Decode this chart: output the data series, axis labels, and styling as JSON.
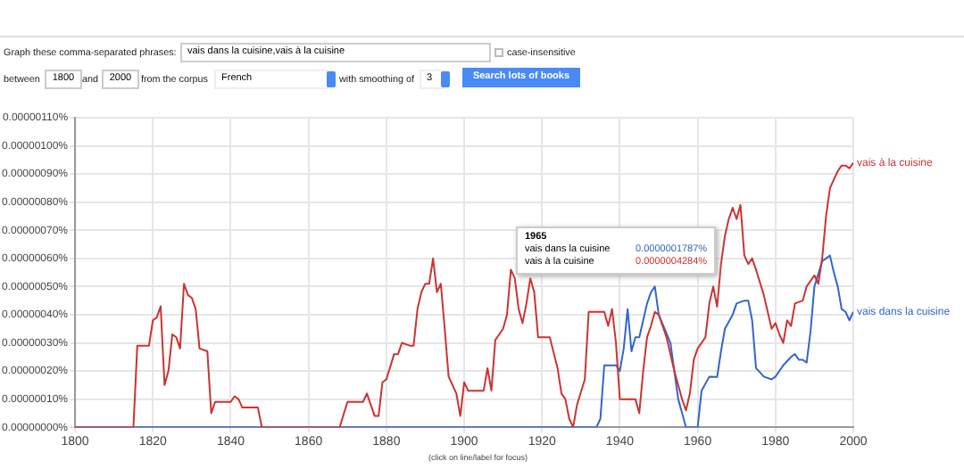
{
  "chart_data": {
    "type": "line",
    "xlim": [
      1800,
      2000
    ],
    "xticks": [
      1800,
      1820,
      1840,
      1860,
      1880,
      1900,
      1920,
      1940,
      1960,
      1980,
      2000
    ],
    "ylim": [
      0,
      1.1e-06
    ],
    "yticks": [
      {
        "value": 0,
        "label": "0.00000000%"
      },
      {
        "value": 1e-07,
        "label": "0.00000010%"
      },
      {
        "value": 2e-07,
        "label": "0.00000020%"
      },
      {
        "value": 3e-07,
        "label": "0.00000030%"
      },
      {
        "value": 4e-07,
        "label": "0.00000040%"
      },
      {
        "value": 5e-07,
        "label": "0.00000050%"
      },
      {
        "value": 6e-07,
        "label": "0.00000060%"
      },
      {
        "value": 7e-07,
        "label": "0.00000070%"
      },
      {
        "value": 8e-07,
        "label": "0.00000080%"
      },
      {
        "value": 9e-07,
        "label": "0.00000090%"
      },
      {
        "value": 1e-06,
        "label": "0.00000100%"
      },
      {
        "value": 1.1e-06,
        "label": "0.00000110%"
      }
    ],
    "grid": true,
    "legend": false,
    "marker": "none",
    "line_style": "solid",
    "series": [
      {
        "name": "vais à la cuisine",
        "color": "#cc3333",
        "x": [
          1800,
          1815,
          1816,
          1819,
          1820,
          1821,
          1822,
          1823,
          1824,
          1825,
          1826,
          1827,
          1828,
          1829,
          1830,
          1831,
          1832,
          1834,
          1835,
          1836,
          1840,
          1841,
          1842,
          1843,
          1847,
          1848,
          1868,
          1870,
          1874,
          1875,
          1877,
          1878,
          1879,
          1880,
          1882,
          1883,
          1884,
          1886,
          1887,
          1888,
          1889,
          1890,
          1891,
          1892,
          1893,
          1894,
          1895,
          1896,
          1898,
          1899,
          1900,
          1901,
          1905,
          1906,
          1907,
          1908,
          1909,
          1910,
          1911,
          1912,
          1913,
          1914,
          1915,
          1916,
          1917,
          1918,
          1919,
          1922,
          1924,
          1925,
          1926,
          1927,
          1928,
          1929,
          1931,
          1932,
          1936,
          1937,
          1938,
          1939,
          1940,
          1944,
          1945,
          1946,
          1947,
          1948,
          1949,
          1950,
          1952,
          1954,
          1956,
          1957,
          1958,
          1959,
          1960,
          1962,
          1963,
          1964,
          1965,
          1966,
          1967,
          1968,
          1969,
          1970,
          1971,
          1972,
          1973,
          1974,
          1975,
          1977,
          1979,
          1980,
          1981,
          1982,
          1983,
          1984,
          1985,
          1987,
          1988,
          1990,
          1991,
          1992,
          1993,
          1994,
          1995,
          1996,
          1997,
          1998,
          1999,
          2000
        ],
        "values": [
          0,
          0,
          2.9e-07,
          2.9e-07,
          3.8e-07,
          3.9e-07,
          4.3e-07,
          1.5e-07,
          2e-07,
          3.3e-07,
          3.2e-07,
          2.8e-07,
          5.1e-07,
          4.7e-07,
          4.6e-07,
          4.2e-07,
          2.8e-07,
          2.7e-07,
          5e-08,
          9e-08,
          9e-08,
          1.1e-07,
          1e-07,
          7e-08,
          7e-08,
          0,
          0,
          9e-08,
          9e-08,
          1.2e-07,
          4e-08,
          4e-08,
          1.6e-07,
          1.7e-07,
          2.6e-07,
          2.6e-07,
          3e-07,
          2.9e-07,
          2.9e-07,
          4.2e-07,
          4.8e-07,
          5.1e-07,
          5.1e-07,
          6e-07,
          4.8e-07,
          5.1e-07,
          3.5e-07,
          1.8e-07,
          1.2e-07,
          4e-08,
          1.6e-07,
          1.3e-07,
          1.3e-07,
          2.1e-07,
          1.3e-07,
          3.1e-07,
          3.3e-07,
          3.5e-07,
          4e-07,
          5.6e-07,
          5.3e-07,
          4.2e-07,
          3.7e-07,
          4.4e-07,
          5.3e-07,
          4.8e-07,
          3.2e-07,
          3.2e-07,
          2.1e-07,
          1.2e-07,
          1e-07,
          3e-08,
          0,
          8e-08,
          1.7e-07,
          4.1e-07,
          4.1e-07,
          3.6e-07,
          4.2e-07,
          3e-07,
          1e-07,
          1e-07,
          5e-08,
          2e-07,
          3.2e-07,
          3.6e-07,
          4.1e-07,
          4e-07,
          3.2e-07,
          2e-07,
          1e-07,
          6e-08,
          1.2e-07,
          2.4e-07,
          2.8e-07,
          3.2e-07,
          4.4e-07,
          5e-07,
          4.284e-07,
          5.8e-07,
          6.8e-07,
          7.4e-07,
          7.8e-07,
          7.4e-07,
          7.9e-07,
          6.1e-07,
          5.8e-07,
          6e-07,
          5.6e-07,
          4.7e-07,
          3.5e-07,
          3.7e-07,
          3.3e-07,
          3e-07,
          3.8e-07,
          3.6e-07,
          4.4e-07,
          4.5e-07,
          5e-07,
          5.4e-07,
          5.1e-07,
          6e-07,
          7.5e-07,
          8.5e-07,
          8.8e-07,
          9.1e-07,
          9.3e-07,
          9.3e-07,
          9.2e-07,
          9.4e-07
        ]
      },
      {
        "name": "vais dans la cuisine",
        "color": "#3366cc",
        "x": [
          1800,
          1934,
          1935,
          1936,
          1939,
          1940,
          1941,
          1942,
          1943,
          1944,
          1945,
          1946,
          1947,
          1948,
          1949,
          1950,
          1953,
          1955,
          1957,
          1960,
          1961,
          1963,
          1965,
          1966,
          1967,
          1969,
          1970,
          1972,
          1973,
          1974,
          1975,
          1977,
          1979,
          1980,
          1982,
          1984,
          1985,
          1986,
          1987,
          1988,
          1989,
          1990,
          1992,
          1993,
          1994,
          1995,
          1996,
          1997,
          1998,
          1999,
          2000
        ],
        "values": [
          0,
          0,
          3e-08,
          2.2e-07,
          2.2e-07,
          2e-07,
          2.8e-07,
          4.2e-07,
          2.7e-07,
          3.2e-07,
          3.2e-07,
          3.8e-07,
          4.4e-07,
          4.8e-07,
          5e-07,
          4e-07,
          3e-07,
          1e-07,
          0,
          0,
          1.3e-07,
          1.8e-07,
          1.787e-07,
          2.7e-07,
          3.5e-07,
          4e-07,
          4.4e-07,
          4.5e-07,
          4.5e-07,
          3.8e-07,
          2.1e-07,
          1.8e-07,
          1.7e-07,
          1.8e-07,
          2.2e-07,
          2.5e-07,
          2.6e-07,
          2.4e-07,
          2.4e-07,
          2.3e-07,
          3.4e-07,
          5e-07,
          5.9e-07,
          6e-07,
          6.1e-07,
          5.5e-07,
          5e-07,
          4.2e-07,
          4.1e-07,
          3.8e-07,
          4.1e-07
        ]
      }
    ],
    "annotations": [
      "Graph these comma-separated phrases:",
      "vais dans la cuisine,vais à la cuisine",
      "case-insensitive",
      "between",
      "1800",
      "and",
      "2000",
      "from the corpus",
      "French",
      "with smoothing of",
      "3",
      "Search lots of books",
      "1965",
      "vais dans la cuisine",
      "0.0000001787%",
      "vais à la cuisine",
      "0.0000004284%",
      "(click on line/label for focus)"
    ]
  }
}
